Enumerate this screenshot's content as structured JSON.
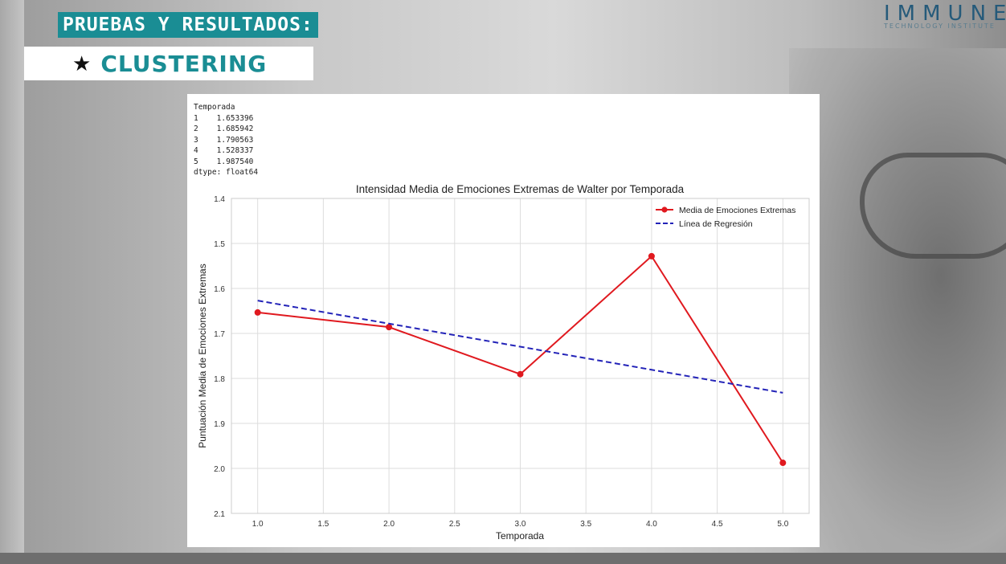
{
  "header": {
    "section_title": "PRUEBAS Y RESULTADOS:",
    "subtitle": "CLUSTERING",
    "star_icon": "★"
  },
  "logo": {
    "main": "IMMUNE",
    "sub": "TECHNOLOGY INSTITUTE"
  },
  "console": {
    "header": "Temporada",
    "rows": [
      {
        "index": "1",
        "value": "1.653396"
      },
      {
        "index": "2",
        "value": "1.685942"
      },
      {
        "index": "3",
        "value": "1.790563"
      },
      {
        "index": "4",
        "value": "1.528337"
      },
      {
        "index": "5",
        "value": "1.987540"
      }
    ],
    "dtype": "dtype: float64"
  },
  "chart_data": {
    "type": "line",
    "title": "Intensidad Media de Emociones Extremas de Walter por Temporada",
    "xlabel": "Temporada",
    "ylabel": "Puntuación Media de Emociones Extremas",
    "xlim": [
      0.8,
      5.2
    ],
    "ylim": [
      1.4,
      2.1
    ],
    "y_inverted": true,
    "xticks": [
      1.0,
      1.5,
      2.0,
      2.5,
      3.0,
      3.5,
      4.0,
      4.5,
      5.0
    ],
    "xtick_labels": [
      "1.0",
      "1.5",
      "2.0",
      "2.5",
      "3.0",
      "3.5",
      "4.0",
      "4.5",
      "5.0"
    ],
    "yticks": [
      1.4,
      1.5,
      1.6,
      1.7,
      1.8,
      1.9,
      2.0,
      2.1
    ],
    "ytick_labels": [
      "1.4",
      "1.5",
      "1.6",
      "1.7",
      "1.8",
      "1.9",
      "2.0",
      "2.1"
    ],
    "grid": true,
    "legend_position": "top-right",
    "series": [
      {
        "name": "Media de Emociones Extremas",
        "style": "solid-marker",
        "color": "#e0191f",
        "x": [
          1.0,
          2.0,
          3.0,
          4.0,
          5.0
        ],
        "y": [
          1.653396,
          1.685942,
          1.790563,
          1.528337,
          1.98754
        ]
      },
      {
        "name": "Línea de Regresión",
        "style": "dashed",
        "color": "#2323b8",
        "x": [
          1.0,
          5.0
        ],
        "y": [
          1.627,
          1.832
        ]
      }
    ]
  }
}
